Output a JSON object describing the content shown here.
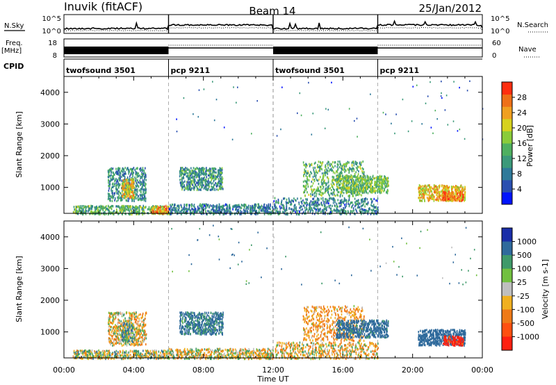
{
  "header": {
    "station": "Inuvik (fitACF)",
    "beam": "Beam 14",
    "date": "25/Jan/2012"
  },
  "nsky_panel": {
    "left_label": "N.Sky",
    "left_ticks": [
      "10^5",
      "10^0"
    ],
    "right_ticks": [
      "10^5",
      "10^0"
    ],
    "right_label": "N.Search"
  },
  "freq_panel": {
    "left_label_1": "Freq.",
    "left_label_2": "[MHz]",
    "left_ticks": [
      "18",
      "8"
    ],
    "right_ticks": [
      "60",
      "0"
    ],
    "right_label": "Nave"
  },
  "cpid": {
    "label": "CPID",
    "segments": [
      {
        "name": "twofsound 3501",
        "start_hour": 0,
        "end_hour": 6
      },
      {
        "name": "pcp 9211",
        "start_hour": 6,
        "end_hour": 12
      },
      {
        "name": "twofsound 3501",
        "start_hour": 12,
        "end_hour": 18
      },
      {
        "name": "pcp 9211",
        "start_hour": 18,
        "end_hour": 24
      }
    ]
  },
  "axes": {
    "ylabel": "Slant Range [km]",
    "xlabel": "Time UT",
    "y_ticks": [
      "1000",
      "2000",
      "3000",
      "4000"
    ],
    "x_ticks": [
      "00:00",
      "04:00",
      "08:00",
      "12:00",
      "16:00",
      "20:00",
      "00:00"
    ]
  },
  "colorbars": {
    "power": {
      "label": "Power [dB]",
      "ticks": [
        "28",
        "24",
        "20",
        "16",
        "12",
        "8",
        "4"
      ]
    },
    "velocity": {
      "label": "Velocity [m s-1]",
      "ticks": [
        "1000",
        "500",
        "100",
        "25",
        "-25",
        "-100",
        "-500",
        "-1000"
      ]
    }
  },
  "chart_data": [
    {
      "type": "heatmap",
      "name_printed": "Power [dB]",
      "xlabel": "Time UT",
      "ylabel": "Slant Range [km]",
      "xlim_hours": [
        0,
        24
      ],
      "ylim_km": [
        180,
        4500
      ],
      "clim_db": [
        0,
        32
      ],
      "scatter_regions": [
        {
          "t0": 2.5,
          "t1": 4.7,
          "r0": 600,
          "r1": 1650,
          "power_db": 10
        },
        {
          "t0": 3.3,
          "t1": 4.0,
          "r0": 700,
          "r1": 1300,
          "power_db": 22
        },
        {
          "t0": 0.5,
          "t1": 6.0,
          "r0": 180,
          "r1": 450,
          "power_db": 14
        },
        {
          "t0": 5.0,
          "t1": 6.0,
          "r0": 200,
          "r1": 450,
          "power_db": 26
        },
        {
          "t0": 6.6,
          "t1": 9.1,
          "r0": 950,
          "r1": 1650,
          "power_db": 11
        },
        {
          "t0": 6.0,
          "t1": 12.0,
          "r0": 180,
          "r1": 500,
          "power_db": 9
        },
        {
          "t0": 13.7,
          "t1": 17.2,
          "r0": 750,
          "r1": 1850,
          "power_db": 14
        },
        {
          "t0": 15.6,
          "t1": 18.6,
          "r0": 850,
          "r1": 1400,
          "power_db": 16
        },
        {
          "t0": 12.0,
          "t1": 18.0,
          "r0": 180,
          "r1": 700,
          "power_db": 9
        },
        {
          "t0": 20.3,
          "t1": 23.0,
          "r0": 600,
          "r1": 1100,
          "power_db": 22
        },
        {
          "t0": 21.7,
          "t1": 22.9,
          "r0": 600,
          "r1": 900,
          "power_db": 27
        },
        {
          "t0": 6.0,
          "t1": 24.0,
          "r0": 2500,
          "r1": 4400,
          "power_db": 8
        }
      ]
    },
    {
      "type": "heatmap",
      "name_printed": "Velocity [m s-1]",
      "xlabel": "Time UT",
      "ylabel": "Slant Range [km]",
      "xlim_hours": [
        0,
        24
      ],
      "ylim_km": [
        180,
        4500
      ],
      "clim_ms": [
        -1000,
        1000
      ],
      "scatter_regions": [
        {
          "t0": 2.5,
          "t1": 4.7,
          "r0": 600,
          "r1": 1650,
          "velocity_ms": -60
        },
        {
          "t0": 3.3,
          "t1": 4.0,
          "r0": 700,
          "r1": 1300,
          "velocity_ms": 80
        },
        {
          "t0": 0.5,
          "t1": 6.0,
          "r0": 180,
          "r1": 450,
          "velocity_ms": 0
        },
        {
          "t0": 6.6,
          "t1": 9.1,
          "r0": 950,
          "r1": 1650,
          "velocity_ms": 150
        },
        {
          "t0": 6.0,
          "t1": 12.0,
          "r0": 180,
          "r1": 500,
          "velocity_ms": -40
        },
        {
          "t0": 13.7,
          "t1": 17.2,
          "r0": 750,
          "r1": 1850,
          "velocity_ms": -120
        },
        {
          "t0": 15.6,
          "t1": 18.6,
          "r0": 850,
          "r1": 1400,
          "velocity_ms": 200
        },
        {
          "t0": 12.0,
          "t1": 18.0,
          "r0": 180,
          "r1": 700,
          "velocity_ms": -60
        },
        {
          "t0": 20.3,
          "t1": 23.0,
          "r0": 600,
          "r1": 1100,
          "velocity_ms": 300
        },
        {
          "t0": 21.7,
          "t1": 22.9,
          "r0": 600,
          "r1": 900,
          "velocity_ms": -600
        },
        {
          "t0": 6.0,
          "t1": 24.0,
          "r0": 2500,
          "r1": 4400,
          "velocity_ms": 120
        }
      ]
    }
  ]
}
